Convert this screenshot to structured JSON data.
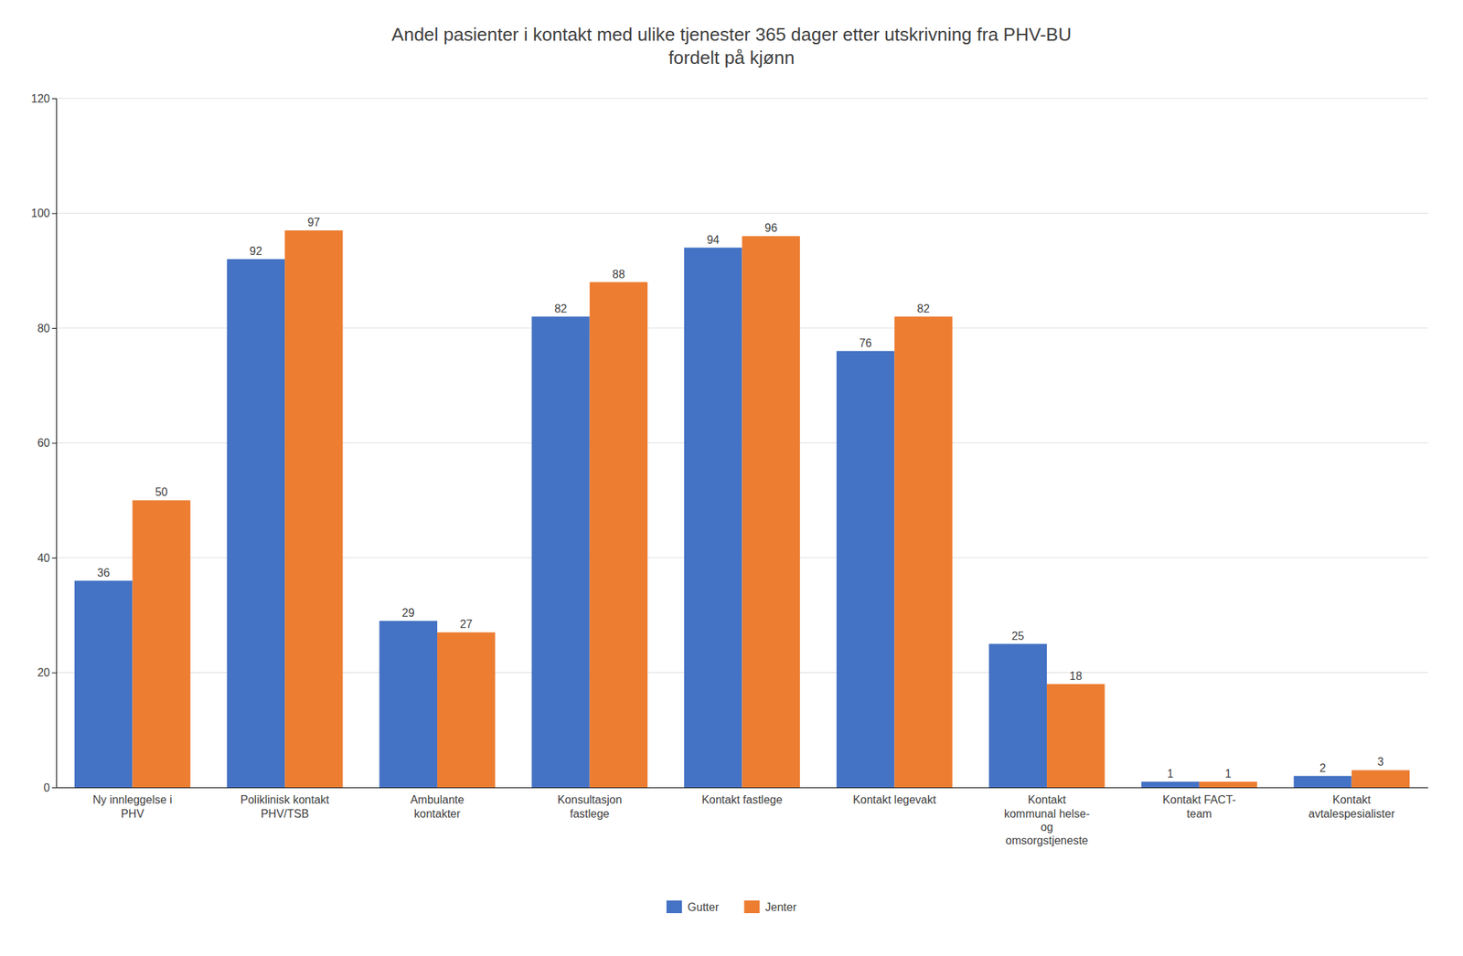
{
  "chart_data": {
    "type": "bar",
    "title": "Andel pasienter i kontakt med ulike tjenester 365 dager etter utskrivning fra PHV-BU\nfordelt på kjønn",
    "categories": [
      "Ny innleggelse i\nPHV",
      "Poliklinisk kontakt\nPHV/TSB",
      "Ambulante\nkontakter",
      "Konsultasjon\nfastlege",
      "Kontakt fastlege",
      "Kontakt legevakt",
      "Kontakt\nkommunal helse-\nog\nomsorgstjeneste",
      "Kontakt FACT-\nteam",
      "Kontakt\navtalespesialister"
    ],
    "series": [
      {
        "name": "Gutter",
        "color": "#4472C4",
        "values": [
          36,
          92,
          29,
          82,
          94,
          76,
          25,
          1,
          2
        ]
      },
      {
        "name": "Jenter",
        "color": "#ED7D31",
        "values": [
          50,
          97,
          27,
          88,
          96,
          82,
          18,
          1,
          3
        ]
      }
    ],
    "ylim": [
      0,
      120
    ],
    "yticks": [
      0,
      20,
      40,
      60,
      80,
      100,
      120
    ],
    "grid": true,
    "legend": "bottom",
    "data_labels": true
  }
}
